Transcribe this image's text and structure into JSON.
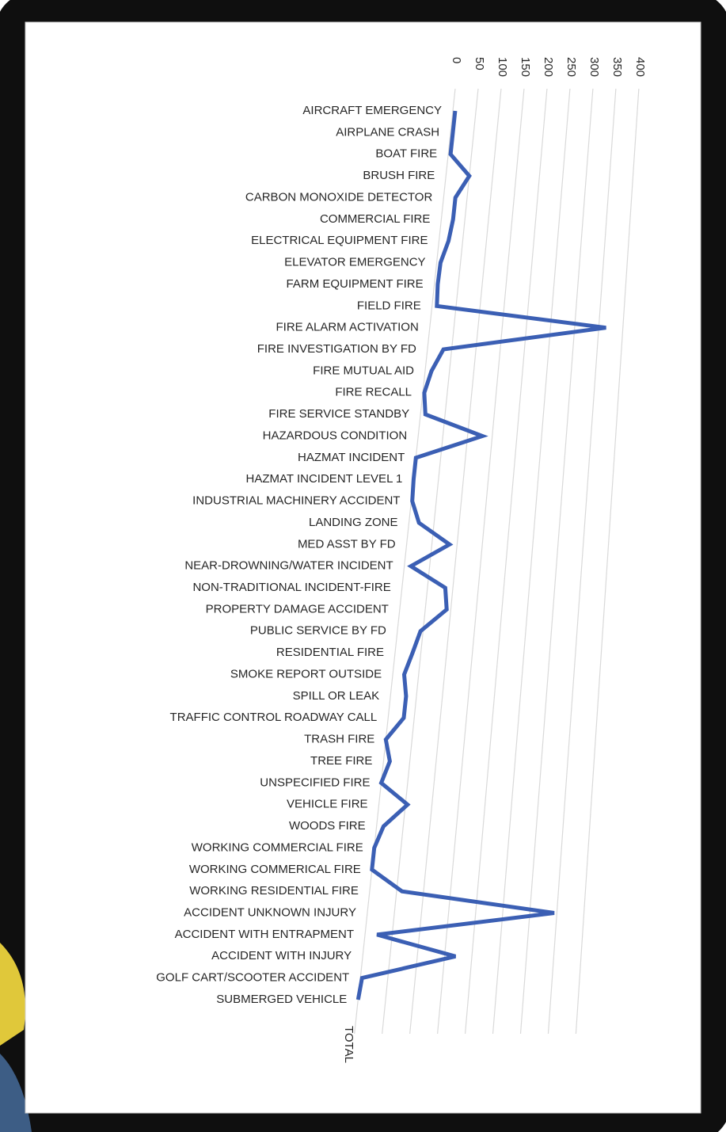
{
  "chart_data": {
    "type": "line",
    "categories": [
      "AIRCRAFT EMERGENCY",
      "AIRPLANE CRASH",
      "BOAT FIRE",
      "BRUSH FIRE",
      "CARBON MONOXIDE DETECTOR",
      "COMMERCIAL FIRE",
      "ELECTRICAL EQUIPMENT FIRE",
      "ELEVATOR EMERGENCY",
      "FARM EQUIPMENT FIRE",
      "FIELD FIRE",
      "FIRE ALARM ACTIVATION",
      "FIRE INVESTIGATION BY FD",
      "FIRE MUTUAL AID",
      "FIRE RECALL",
      "FIRE SERVICE STANDBY",
      "HAZARDOUS CONDITION",
      "HAZMAT INCIDENT",
      "HAZMAT INCIDENT LEVEL 1",
      "INDUSTRIAL MACHINERY ACCIDENT",
      "LANDING ZONE",
      "MED ASST BY FD",
      "NEAR-DROWNING/WATER INCIDENT",
      "NON-TRADITIONAL INCIDENT-FIRE",
      "PROPERTY DAMAGE ACCIDENT",
      "PUBLIC SERVICE BY FD",
      "RESIDENTIAL FIRE",
      "SMOKE REPORT OUTSIDE",
      "SPILL OR LEAK",
      "TRAFFIC CONTROL ROADWAY CALL",
      "TRASH FIRE",
      "TREE FIRE",
      "UNSPECIFIED FIRE",
      "VEHICLE FIRE",
      "WOODS FIRE",
      "WORKING COMMERCIAL FIRE",
      "WORKING COMMERICAL FIRE",
      "WORKING RESIDENTIAL FIRE",
      "ACCIDENT UNKNOWN INJURY",
      "ACCIDENT WITH ENTRAPMENT",
      "ACCIDENT WITH INJURY",
      "GOLF CART/SCOOTER ACCIDENT",
      "SUBMERGED VEHICLE"
    ],
    "series": [
      {
        "name": "TOTAL",
        "color": "#3b5fb4",
        "values": [
          5,
          5,
          5,
          50,
          25,
          25,
          20,
          8,
          7,
          10,
          365,
          33,
          13,
          3,
          10,
          130,
          0,
          0,
          2,
          20,
          85,
          13,
          85,
          92,
          45,
          34,
          22,
          30,
          30,
          0,
          12,
          0,
          54,
          13,
          0,
          0,
          60,
          345,
          22,
          170,
          3,
          0
        ]
      }
    ],
    "ylim": [
      0,
      400
    ],
    "yticks": [
      0,
      50,
      100,
      150,
      200,
      250,
      300,
      350,
      400
    ],
    "grid": true
  }
}
